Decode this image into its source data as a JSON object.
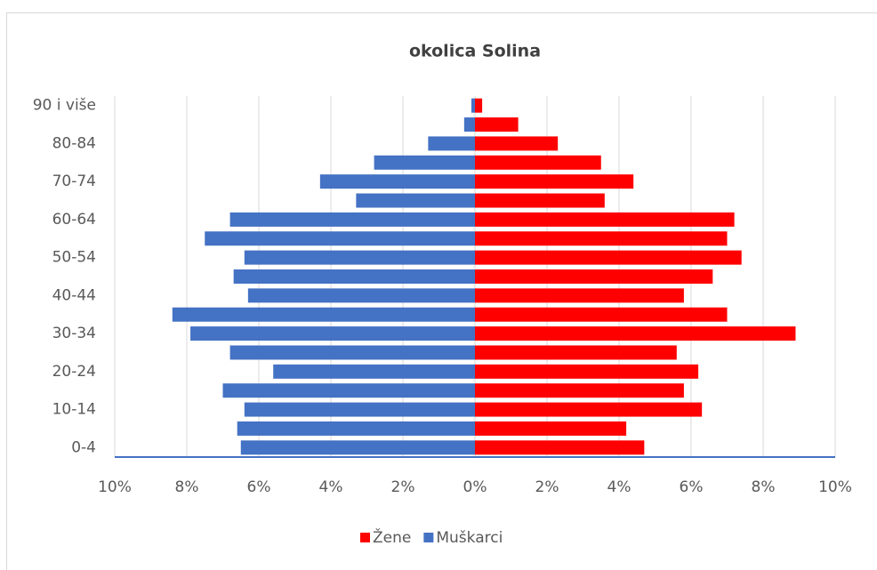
{
  "chart_data": {
    "type": "bar",
    "orientation": "horizontal",
    "title": "okolica Solina",
    "categories": [
      "0-4",
      null,
      "10-14",
      null,
      "20-24",
      null,
      "30-34",
      null,
      "40-44",
      null,
      "50-54",
      null,
      "60-64",
      null,
      "70-74",
      null,
      "80-84",
      null,
      "90 i više"
    ],
    "series": [
      {
        "name": "Žene",
        "color": "#ff0000",
        "values": [
          4.7,
          4.2,
          6.3,
          5.8,
          6.2,
          5.6,
          8.9,
          7.0,
          5.8,
          6.6,
          7.4,
          7.0,
          7.2,
          3.6,
          4.4,
          3.5,
          2.3,
          1.2,
          0.2
        ]
      },
      {
        "name": "Muškarci",
        "color": "#4472c4",
        "values": [
          -6.5,
          -6.6,
          -6.4,
          -7.0,
          -5.6,
          -6.8,
          -7.9,
          -8.4,
          -6.3,
          -6.7,
          -6.4,
          -7.5,
          -6.8,
          -3.3,
          -4.3,
          -2.8,
          -1.3,
          -0.3,
          -0.1
        ]
      }
    ],
    "xlim": [
      -10,
      10
    ],
    "xticks": [
      {
        "value": -10,
        "label": "10%"
      },
      {
        "value": -8,
        "label": "8%"
      },
      {
        "value": -6,
        "label": "6%"
      },
      {
        "value": -4,
        "label": "4%"
      },
      {
        "value": -2,
        "label": "2%"
      },
      {
        "value": 0,
        "label": "0%"
      },
      {
        "value": 2,
        "label": "2%"
      },
      {
        "value": 4,
        "label": "4%"
      },
      {
        "value": 6,
        "label": "6%"
      },
      {
        "value": 8,
        "label": "8%"
      },
      {
        "value": 10,
        "label": "10%"
      }
    ],
    "grid": true,
    "legend": "bottom"
  }
}
